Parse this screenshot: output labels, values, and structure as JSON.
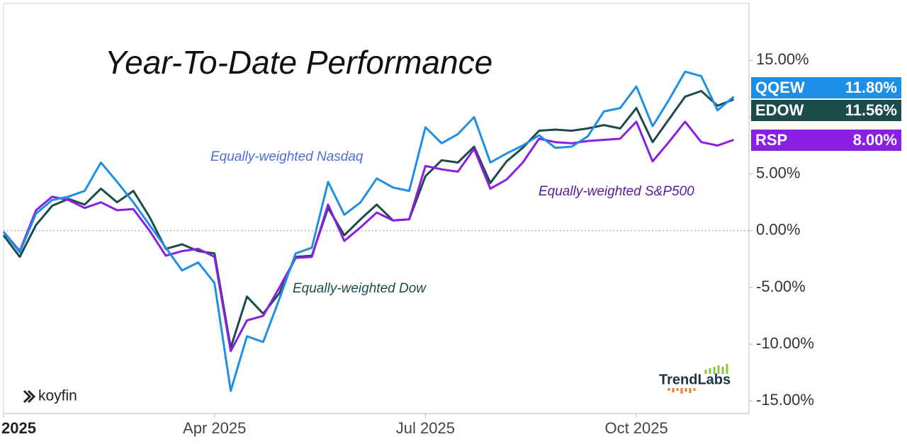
{
  "chart_data": {
    "type": "line",
    "title": "Year-To-Date Performance",
    "categories": [
      "2025",
      null,
      null,
      null,
      null,
      null,
      null,
      null,
      null,
      null,
      null,
      null,
      null,
      "Apr 2025",
      null,
      null,
      null,
      null,
      null,
      null,
      null,
      null,
      null,
      null,
      null,
      null,
      "Jul 2025",
      null,
      null,
      null,
      null,
      null,
      null,
      null,
      null,
      null,
      null,
      null,
      null,
      "Oct 2025",
      null,
      null,
      null,
      null,
      null,
      null
    ],
    "series": [
      {
        "name": "QQEW",
        "color": "#1e8fe6",
        "values": [
          -0.1,
          -1.9,
          1.5,
          2.7,
          3.0,
          3.5,
          6.0,
          4.3,
          2.5,
          0.5,
          -1.5,
          -3.5,
          -2.8,
          -4.6,
          -14.1,
          -9.3,
          -9.8,
          -6.0,
          -2.0,
          -1.5,
          4.3,
          1.4,
          2.5,
          4.6,
          3.8,
          3.5,
          9.1,
          7.7,
          8.5,
          10.0,
          6.0,
          6.8,
          7.5,
          8.4,
          7.3,
          7.4,
          8.3,
          10.5,
          10.8,
          12.7,
          9.2,
          11.5,
          14.0,
          13.6,
          10.6,
          11.8
        ],
        "value_labels": [
          null,
          null,
          null,
          null,
          null,
          null,
          null,
          null,
          null,
          null,
          null,
          null,
          null,
          null,
          null,
          null,
          null,
          null,
          null,
          null,
          null,
          null,
          null,
          null,
          null,
          null,
          null,
          null,
          null,
          null,
          null,
          null,
          null,
          null,
          null,
          null,
          null,
          null,
          null,
          null,
          null,
          null,
          null,
          null,
          null,
          "11.80%"
        ]
      },
      {
        "name": "EDOW",
        "color": "#1d4b4b",
        "values": [
          -0.4,
          -2.3,
          0.5,
          2.2,
          2.8,
          2.3,
          3.7,
          2.5,
          3.5,
          1.2,
          -1.6,
          -1.2,
          -1.8,
          -2.0,
          -10.3,
          -5.8,
          -7.3,
          -5.5,
          -2.3,
          -2.2,
          2.0,
          -0.4,
          1.0,
          2.3,
          0.9,
          1.0,
          4.8,
          6.2,
          6.0,
          7.4,
          4.2,
          6.1,
          7.3,
          8.8,
          8.9,
          8.8,
          9.0,
          9.3,
          9.0,
          10.8,
          7.8,
          9.8,
          11.8,
          12.3,
          11.0,
          11.56
        ],
        "value_labels": [
          null,
          null,
          null,
          null,
          null,
          null,
          null,
          null,
          null,
          null,
          null,
          null,
          null,
          null,
          null,
          null,
          null,
          null,
          null,
          null,
          null,
          null,
          null,
          null,
          null,
          null,
          null,
          null,
          null,
          null,
          null,
          null,
          null,
          null,
          null,
          null,
          null,
          null,
          null,
          null,
          null,
          null,
          null,
          null,
          null,
          "11.56%"
        ]
      },
      {
        "name": "RSP",
        "color": "#8a1fe4",
        "values": [
          -0.1,
          -1.8,
          1.8,
          3.0,
          2.7,
          2.0,
          2.5,
          1.8,
          1.9,
          0.0,
          -2.2,
          -1.8,
          -1.6,
          -2.3,
          -10.6,
          -7.9,
          -7.5,
          -5.0,
          -2.4,
          -2.3,
          2.3,
          -0.9,
          0.3,
          1.6,
          0.9,
          1.0,
          5.7,
          5.4,
          5.2,
          7.2,
          3.7,
          4.5,
          6.0,
          8.1,
          7.8,
          7.7,
          7.9,
          8.0,
          8.1,
          9.6,
          6.1,
          7.8,
          9.6,
          7.8,
          7.5,
          8.0
        ],
        "value_labels": [
          null,
          null,
          null,
          null,
          null,
          null,
          null,
          null,
          null,
          null,
          null,
          null,
          null,
          null,
          null,
          null,
          null,
          null,
          null,
          null,
          null,
          null,
          null,
          null,
          null,
          null,
          null,
          null,
          null,
          null,
          null,
          null,
          null,
          null,
          null,
          null,
          null,
          null,
          null,
          null,
          null,
          null,
          null,
          null,
          null,
          "8.00%"
        ]
      }
    ],
    "ylim": [
      -16.1,
      20
    ],
    "yticks": [
      {
        "value": 15,
        "label": "15.00%"
      },
      {
        "value": 10,
        "label": "10.00%"
      },
      {
        "value": 5,
        "label": "5.00%"
      },
      {
        "value": 0,
        "label": "0.00%"
      },
      {
        "value": -5,
        "label": "-5.00%"
      },
      {
        "value": -10,
        "label": "-10.00%"
      },
      {
        "value": -15,
        "label": "-15.00%"
      }
    ],
    "zero_line": true,
    "annotations": [
      {
        "text": "Equally-weighted Nasdaq",
        "color": "#4b6de0"
      },
      {
        "text": "Equally-weighted S&P500",
        "color": "#5a1a9e"
      },
      {
        "text": "Equally-weighted Dow",
        "color": "#1d4b4b"
      }
    ],
    "watermarks": [
      "koyfin",
      "TrendLabs"
    ]
  }
}
